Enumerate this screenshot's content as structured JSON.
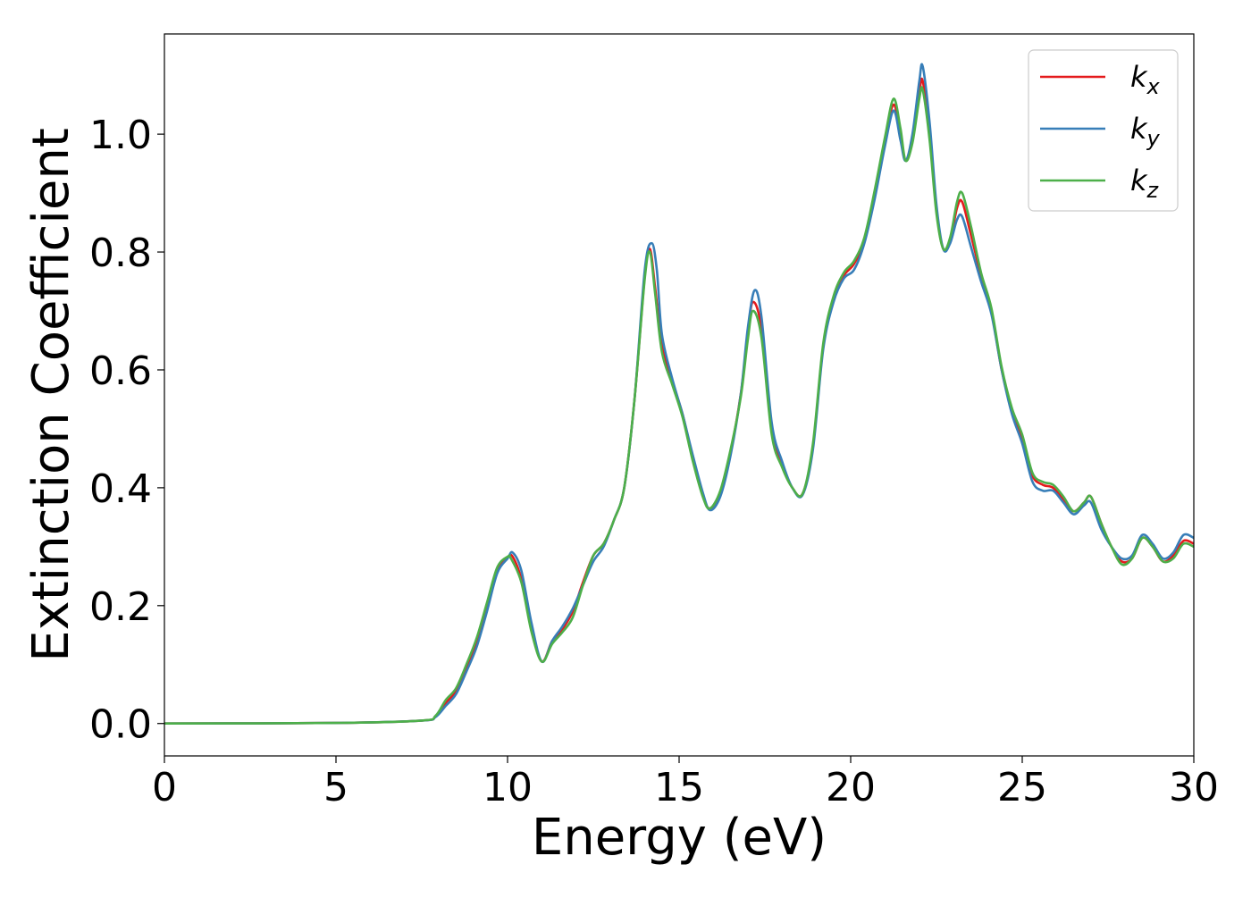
{
  "chart_data": {
    "type": "line",
    "title": "",
    "xlabel": "Energy (eV)",
    "ylabel": "Extinction Coefficient",
    "xlim": [
      0,
      30
    ],
    "ylim": [
      -0.055,
      1.17
    ],
    "xticks": [
      0,
      5,
      10,
      15,
      20,
      25,
      30
    ],
    "xtick_labels": [
      "0",
      "5",
      "10",
      "15",
      "20",
      "25",
      "30"
    ],
    "yticks": [
      0.0,
      0.2,
      0.4,
      0.6,
      0.8,
      1.0
    ],
    "ytick_labels": [
      "0.0",
      "0.2",
      "0.4",
      "0.6",
      "0.8",
      "1.0"
    ],
    "grid": false,
    "legend_position": "top-right",
    "series": [
      {
        "name": "k_x",
        "label_main": "k",
        "label_sub": "x",
        "color": "#e41a1c",
        "x": [
          0,
          5,
          7.5,
          7.9,
          8.2,
          8.5,
          8.8,
          9.1,
          9.4,
          9.7,
          10.0,
          10.15,
          10.4,
          10.7,
          11.0,
          11.3,
          11.6,
          11.9,
          12.2,
          12.5,
          12.8,
          13.1,
          13.4,
          13.7,
          14.0,
          14.15,
          14.3,
          14.5,
          14.8,
          15.1,
          15.4,
          15.7,
          15.9,
          16.2,
          16.5,
          16.8,
          17.0,
          17.15,
          17.4,
          17.7,
          18.0,
          18.3,
          18.6,
          18.9,
          19.2,
          19.5,
          19.8,
          20.1,
          20.4,
          20.7,
          21.0,
          21.25,
          21.45,
          21.6,
          21.8,
          22.0,
          22.1,
          22.3,
          22.5,
          22.7,
          22.9,
          23.1,
          23.25,
          23.5,
          23.8,
          24.1,
          24.4,
          24.7,
          25.0,
          25.3,
          25.6,
          25.9,
          26.2,
          26.5,
          26.8,
          27.0,
          27.3,
          27.6,
          27.9,
          28.2,
          28.5,
          28.8,
          29.1,
          29.4,
          29.7,
          30.0
        ],
        "y": [
          0.0,
          0.001,
          0.005,
          0.012,
          0.035,
          0.055,
          0.095,
          0.14,
          0.2,
          0.26,
          0.282,
          0.283,
          0.245,
          0.16,
          0.105,
          0.14,
          0.16,
          0.19,
          0.24,
          0.285,
          0.305,
          0.345,
          0.4,
          0.55,
          0.76,
          0.805,
          0.74,
          0.64,
          0.58,
          0.525,
          0.45,
          0.385,
          0.365,
          0.39,
          0.46,
          0.56,
          0.66,
          0.715,
          0.67,
          0.5,
          0.44,
          0.4,
          0.39,
          0.47,
          0.64,
          0.72,
          0.76,
          0.78,
          0.82,
          0.9,
          0.99,
          1.05,
          1.0,
          0.955,
          0.99,
          1.07,
          1.09,
          1.0,
          0.87,
          0.805,
          0.82,
          0.875,
          0.885,
          0.83,
          0.76,
          0.7,
          0.6,
          0.53,
          0.48,
          0.42,
          0.405,
          0.4,
          0.38,
          0.36,
          0.375,
          0.385,
          0.34,
          0.3,
          0.275,
          0.28,
          0.315,
          0.3,
          0.275,
          0.285,
          0.31,
          0.305
        ]
      },
      {
        "name": "k_y",
        "label_main": "k",
        "label_sub": "y",
        "color": "#377eb8",
        "x": [
          0,
          5,
          7.5,
          7.9,
          8.2,
          8.5,
          8.8,
          9.1,
          9.4,
          9.7,
          10.0,
          10.15,
          10.4,
          10.7,
          11.0,
          11.3,
          11.6,
          11.9,
          12.2,
          12.5,
          12.8,
          13.1,
          13.4,
          13.7,
          14.0,
          14.2,
          14.35,
          14.5,
          14.8,
          15.1,
          15.4,
          15.7,
          15.9,
          16.2,
          16.5,
          16.8,
          17.0,
          17.2,
          17.4,
          17.7,
          18.0,
          18.3,
          18.6,
          18.9,
          19.2,
          19.5,
          19.8,
          20.1,
          20.4,
          20.7,
          21.0,
          21.25,
          21.45,
          21.6,
          21.8,
          22.0,
          22.1,
          22.3,
          22.5,
          22.7,
          22.9,
          23.1,
          23.25,
          23.5,
          23.8,
          24.1,
          24.4,
          24.7,
          25.0,
          25.3,
          25.6,
          25.9,
          26.2,
          26.5,
          26.8,
          27.0,
          27.3,
          27.6,
          27.9,
          28.2,
          28.5,
          28.8,
          29.1,
          29.4,
          29.7,
          30.0
        ],
        "y": [
          0.0,
          0.001,
          0.005,
          0.011,
          0.03,
          0.05,
          0.088,
          0.13,
          0.19,
          0.255,
          0.28,
          0.29,
          0.26,
          0.17,
          0.105,
          0.14,
          0.165,
          0.195,
          0.235,
          0.275,
          0.3,
          0.345,
          0.4,
          0.55,
          0.77,
          0.815,
          0.77,
          0.66,
          0.585,
          0.525,
          0.455,
          0.39,
          0.362,
          0.385,
          0.455,
          0.56,
          0.67,
          0.735,
          0.69,
          0.51,
          0.445,
          0.4,
          0.388,
          0.465,
          0.635,
          0.715,
          0.755,
          0.77,
          0.815,
          0.89,
          0.98,
          1.04,
          0.99,
          0.955,
          1.0,
          1.09,
          1.115,
          1.02,
          0.88,
          0.805,
          0.815,
          0.855,
          0.86,
          0.81,
          0.75,
          0.695,
          0.6,
          0.525,
          0.475,
          0.41,
          0.395,
          0.395,
          0.375,
          0.355,
          0.37,
          0.375,
          0.33,
          0.3,
          0.28,
          0.285,
          0.32,
          0.305,
          0.28,
          0.29,
          0.32,
          0.315
        ]
      },
      {
        "name": "k_z",
        "label_main": "k",
        "label_sub": "z",
        "color": "#4daf4a",
        "x": [
          0,
          5,
          7.5,
          7.9,
          8.2,
          8.5,
          8.8,
          9.1,
          9.4,
          9.7,
          10.0,
          10.1,
          10.4,
          10.7,
          11.0,
          11.3,
          11.6,
          11.9,
          12.2,
          12.5,
          12.8,
          13.1,
          13.4,
          13.7,
          14.0,
          14.15,
          14.3,
          14.5,
          14.8,
          15.1,
          15.4,
          15.7,
          15.9,
          16.2,
          16.5,
          16.8,
          17.0,
          17.15,
          17.4,
          17.7,
          18.0,
          18.3,
          18.6,
          18.9,
          19.2,
          19.5,
          19.8,
          20.1,
          20.4,
          20.7,
          21.0,
          21.25,
          21.45,
          21.6,
          21.8,
          22.0,
          22.1,
          22.3,
          22.5,
          22.7,
          22.9,
          23.1,
          23.25,
          23.5,
          23.8,
          24.1,
          24.4,
          24.7,
          25.0,
          25.3,
          25.6,
          25.9,
          26.2,
          26.5,
          26.8,
          27.0,
          27.3,
          27.6,
          27.9,
          28.2,
          28.5,
          28.8,
          29.1,
          29.4,
          29.7,
          30.0
        ],
        "y": [
          0.0,
          0.001,
          0.005,
          0.013,
          0.04,
          0.06,
          0.1,
          0.145,
          0.205,
          0.265,
          0.283,
          0.28,
          0.24,
          0.155,
          0.105,
          0.135,
          0.155,
          0.18,
          0.235,
          0.285,
          0.305,
          0.345,
          0.4,
          0.55,
          0.755,
          0.8,
          0.73,
          0.63,
          0.575,
          0.52,
          0.445,
          0.383,
          0.365,
          0.395,
          0.465,
          0.555,
          0.65,
          0.7,
          0.655,
          0.49,
          0.435,
          0.4,
          0.39,
          0.475,
          0.645,
          0.725,
          0.765,
          0.785,
          0.825,
          0.905,
          0.995,
          1.06,
          1.01,
          0.955,
          0.985,
          1.06,
          1.075,
          0.99,
          0.865,
          0.805,
          0.825,
          0.885,
          0.9,
          0.845,
          0.765,
          0.705,
          0.605,
          0.535,
          0.49,
          0.425,
          0.41,
          0.405,
          0.385,
          0.36,
          0.375,
          0.385,
          0.34,
          0.3,
          0.27,
          0.28,
          0.315,
          0.3,
          0.275,
          0.28,
          0.305,
          0.3
        ]
      }
    ]
  }
}
